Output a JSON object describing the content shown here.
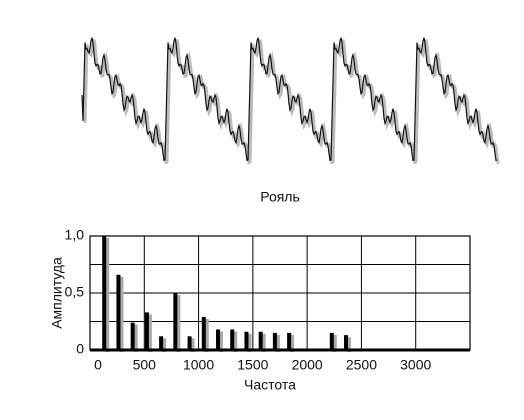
{
  "chart_data": {
    "type": "bar",
    "title": "Рояль",
    "x": [
      131,
      262,
      393,
      524,
      655,
      786,
      917,
      1048,
      1179,
      1310,
      1441,
      1572,
      1703,
      1834,
      2227,
      2358
    ],
    "values": [
      1.0,
      0.66,
      0.24,
      0.33,
      0.12,
      0.5,
      0.12,
      0.29,
      0.18,
      0.18,
      0.16,
      0.16,
      0.15,
      0.15,
      0.15,
      0.13
    ],
    "color": "#000000",
    "xlim": [
      0,
      3500
    ],
    "xticks": [
      0,
      500,
      1000,
      1500,
      2000,
      2500,
      3000
    ],
    "ylim": [
      0,
      1
    ],
    "yticks": [
      0,
      {
        "value": 0.5,
        "label": "0,5"
      },
      {
        "value": 1,
        "label": "1,0"
      }
    ],
    "minor_yticks": [
      0.25,
      0.75
    ],
    "grid": true,
    "xlabel": "Частота",
    "ylabel": "Амплитуда"
  }
}
